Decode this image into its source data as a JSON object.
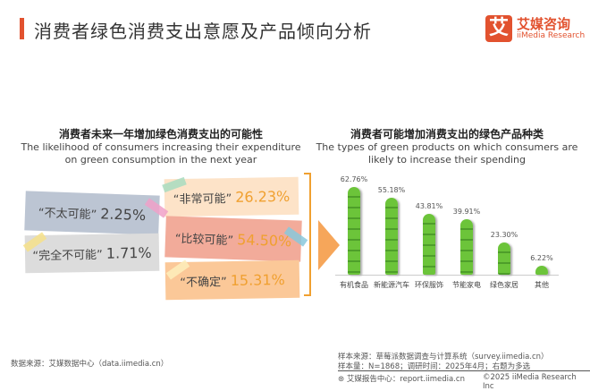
{
  "header": {
    "title": "消费者绿色消费支出意愿及产品倾向分析",
    "logo_mark": "艾",
    "logo_cn": "艾媒咨询",
    "logo_en": "iiMedia Research",
    "brand_color": "#e2522f"
  },
  "left": {
    "title_cn": "消费者未来一年增加绿色消费支出的可能性",
    "title_en_1": "The likelihood of consumers increasing their expenditure",
    "title_en_2": "on green consumption in the next year",
    "items": [
      {
        "label": "“非常可能”",
        "value": "26.23%"
      },
      {
        "label": "“比较可能”",
        "value": "54.50%"
      },
      {
        "label": "“不确定”",
        "value": "15.31%"
      },
      {
        "label": "“不太可能”",
        "value": "2.25%"
      },
      {
        "label": "“完全不可能”",
        "value": "1.71%"
      }
    ]
  },
  "right": {
    "title_cn": "消费者可能增加消费支出的绿色产品种类",
    "title_en_1": "The types of green products on which consumers are",
    "title_en_2": "likely to increase their spending"
  },
  "chart_data": {
    "type": "bar",
    "categories": [
      "有机食品",
      "新能源汽车",
      "环保服饰",
      "节能家电",
      "绿色家居",
      "其他"
    ],
    "values": [
      62.76,
      55.18,
      43.81,
      39.91,
      23.3,
      6.22
    ],
    "labels": [
      "62.76%",
      "55.18%",
      "43.81%",
      "39.91%",
      "23.30%",
      "6.22%"
    ],
    "bar_color": "#6cc43a"
  },
  "footer": {
    "source_left": "数据来源：艾媒数据中心（data.iimedia.cn）",
    "sample_source": "样本来源：草莓派数据调查与计算系统（survey.iimedia.cn）",
    "sample_size": "样本量：N=1868；调研时间：2025年4月；右题为多选",
    "report": "艾媒报告中心：report.iimedia.cn",
    "copyright": "©2025  iiMedia Research  Inc"
  }
}
